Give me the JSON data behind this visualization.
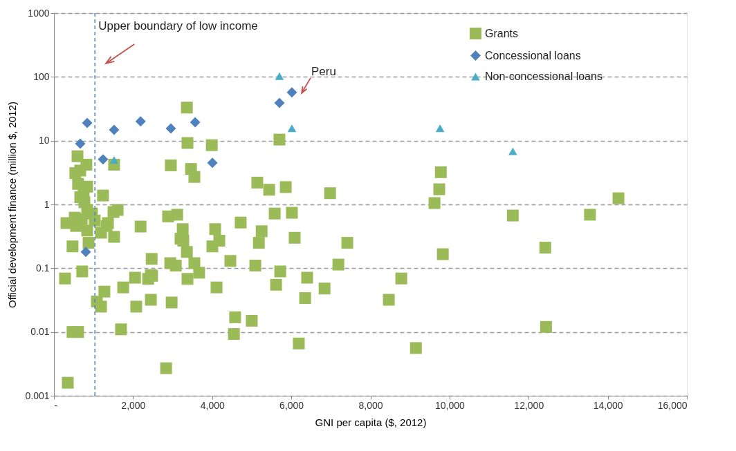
{
  "chart_data": {
    "type": "scatter",
    "xlabel": "GNI per capita ($, 2012)",
    "ylabel": "Official development finance (million $, 2012)",
    "log": "y",
    "grid": "y",
    "legend": "top right",
    "xlim": [
      0,
      16000
    ],
    "xticks": [
      {
        "value": 0,
        "label": "-"
      },
      {
        "value": 2000,
        "label": "2,000"
      },
      {
        "value": 4000,
        "label": "4,000"
      },
      {
        "value": 6000,
        "label": "6,000"
      },
      {
        "value": 8000,
        "label": "8,000"
      },
      {
        "value": 10000,
        "label": "10,000"
      },
      {
        "value": 12000,
        "label": "12,000"
      },
      {
        "value": 14000,
        "label": "14,000"
      },
      {
        "value": 16000,
        "label": "16,000"
      }
    ],
    "ylim": [
      0.001,
      1000
    ],
    "yticks": [
      0.001,
      0.01,
      0.1,
      1,
      10,
      100,
      {
        "value": 1000,
        "label": "1000"
      }
    ],
    "ref_lines": [
      {
        "axis": "x",
        "value": 1035,
        "label": "Upper boundary of low income",
        "color": "#4f81bd",
        "line_style": "dashed"
      }
    ],
    "annotations": [
      {
        "text": "Peru",
        "x": 6015,
        "y": 57
      }
    ],
    "series": [
      {
        "name": "Grants",
        "color": "#9bbb59",
        "marker": "square",
        "x": [
          315,
          280,
          350,
          470,
          470,
          525,
          540,
          595,
          610,
          610,
          665,
          665,
          715,
          750,
          770,
          820,
          840,
          560,
          700,
          840,
          840,
          875,
          960,
          1030,
          1085,
          1190,
          1275,
          1240,
          1190,
          1330,
          1365,
          1520,
          1505,
          1520,
          1610,
          1750,
          1695,
          2050,
          2080,
          2190,
          2380,
          2450,
          2450,
          2470,
          2480,
          2835,
          2885,
          2940,
          2955,
          2975,
          3080,
          3115,
          3200,
          3255,
          3270,
          3360,
          3375,
          3360,
          3375,
          3465,
          3550,
          3550,
          3670,
          3990,
          4005,
          4075,
          4110,
          4180,
          4460,
          4580,
          4550,
          4720,
          5000,
          5090,
          5140,
          5180,
          5250,
          5440,
          5580,
          5615,
          5700,
          5720,
          5860,
          6015,
          6085,
          6190,
          6350,
          6400,
          6840,
          6980,
          7190,
          7415,
          8465,
          8780,
          9150,
          9620,
          9740,
          9780,
          9830,
          11600,
          12420,
          12440,
          13550,
          14270
        ],
        "values": [
          0.51,
          0.069,
          0.0016,
          0.01,
          0.22,
          0.62,
          3.1,
          5.7,
          0.01,
          2.1,
          3.4,
          1.3,
          0.089,
          1.6,
          1.08,
          4.2,
          1.9,
          0.46,
          0.59,
          0.39,
          0.82,
          0.25,
          0.72,
          0.56,
          0.03,
          0.025,
          0.043,
          1.38,
          0.36,
          0.46,
          0.51,
          4.2,
          0.76,
          0.31,
          0.82,
          0.05,
          0.011,
          0.071,
          0.025,
          0.45,
          0.068,
          0.078,
          0.032,
          0.14,
          0.076,
          0.0027,
          0.65,
          0.12,
          4.1,
          0.029,
          0.11,
          0.69,
          0.29,
          0.41,
          0.27,
          33,
          9.2,
          0.18,
          0.068,
          3.6,
          2.7,
          0.12,
          0.085,
          8.5,
          0.22,
          0.41,
          0.05,
          0.27,
          0.13,
          0.017,
          0.0093,
          0.52,
          0.015,
          0.11,
          2.2,
          0.25,
          0.38,
          1.7,
          0.72,
          0.055,
          10.4,
          0.089,
          1.87,
          0.74,
          0.3,
          0.0066,
          0.034,
          0.071,
          0.048,
          1.5,
          0.114,
          0.25,
          0.032,
          0.069,
          0.0056,
          1.05,
          1.73,
          3.2,
          0.166,
          0.67,
          0.21,
          0.012,
          0.69,
          1.25
        ]
      },
      {
        "name": "Concessional loans",
        "color": "#4f81bd",
        "marker": "diamond",
        "x": [
          665,
          840,
          1240,
          1520,
          2190,
          2955,
          3570,
          4005,
          805,
          5700,
          6015
        ],
        "values": [
          9,
          19,
          5.1,
          14.8,
          20,
          15.5,
          19.5,
          4.5,
          0.18,
          39,
          57
        ]
      },
      {
        "name": "Non-concessional loans",
        "color": "#4bacc6",
        "marker": "triangle",
        "x": [
          1520,
          5700,
          6015,
          9760,
          11600
        ],
        "values": [
          5.0,
          103,
          15.6,
          15.6,
          6.8
        ]
      }
    ]
  }
}
